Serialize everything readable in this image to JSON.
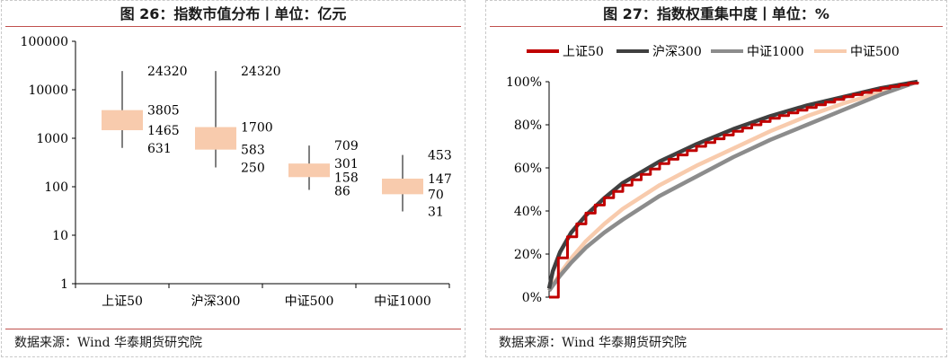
{
  "left": {
    "title": "图 26：指数市值分布丨单位：亿元",
    "source": "数据来源：Wind 华泰期货研究院"
  },
  "right": {
    "title": "图 27：指数权重集中度丨单位：%",
    "source": "数据来源：Wind 华泰期货研究院"
  },
  "colors": {
    "accent_rule": "#c0504d",
    "box_fill": "#f8cbad",
    "sz50": "#c00000",
    "hs300": "#404040",
    "zz1000": "#8c8c8c",
    "zz500": "#f8cbad"
  },
  "chart_data": [
    {
      "type": "box",
      "title": "图 26：指数市值分布丨单位：亿元",
      "yscale": "log",
      "ylim": [
        1,
        100000
      ],
      "y_ticks": [
        "1",
        "10",
        "100",
        "1000",
        "10000",
        "100000"
      ],
      "categories": [
        "上证50",
        "沪深300",
        "中证500",
        "中证1000"
      ],
      "stats": [
        {
          "max": 24320,
          "q3": 3805,
          "median": 1465,
          "q1": 1465,
          "min": 631,
          "labels": [
            "24320",
            "3805",
            "1465",
            "631"
          ]
        },
        {
          "max": 24320,
          "q3": 1700,
          "median": 583,
          "q1": 583,
          "min": 250,
          "labels": [
            "24320",
            "1700",
            "583",
            "250"
          ]
        },
        {
          "max": 709,
          "q3": 301,
          "median": 158,
          "q1": 158,
          "min": 86,
          "labels": [
            "709",
            "301",
            "158",
            "86"
          ]
        },
        {
          "max": 453,
          "q3": 147,
          "median": 70,
          "q1": 70,
          "min": 31,
          "labels": [
            "453",
            "147",
            "70",
            "31"
          ]
        }
      ],
      "grid": false
    },
    {
      "type": "line",
      "title": "图 27：指数权重集中度丨单位：%",
      "ylim": [
        0,
        100
      ],
      "y_ticks": [
        "0%",
        "20%",
        "40%",
        "60%",
        "80%",
        "100%"
      ],
      "x": "cumulative constituent share (0-1)",
      "legend_position": "top",
      "series": [
        {
          "name": "上证50",
          "style": "step",
          "points": [
            [
              0,
              0
            ],
            [
              0.02,
              16
            ],
            [
              0.04,
              25
            ],
            [
              0.06,
              31
            ],
            [
              0.1,
              39
            ],
            [
              0.14,
              45
            ],
            [
              0.2,
              52
            ],
            [
              0.3,
              62
            ],
            [
              0.4,
              70
            ],
            [
              0.5,
              77
            ],
            [
              0.6,
              83
            ],
            [
              0.7,
              88
            ],
            [
              0.8,
              93
            ],
            [
              0.9,
              97
            ],
            [
              1,
              100
            ]
          ]
        },
        {
          "name": "沪深300",
          "points": [
            [
              0,
              4
            ],
            [
              0.01,
              12
            ],
            [
              0.03,
              21
            ],
            [
              0.06,
              30
            ],
            [
              0.1,
              38
            ],
            [
              0.15,
              46
            ],
            [
              0.2,
              53
            ],
            [
              0.3,
              63
            ],
            [
              0.4,
              71
            ],
            [
              0.5,
              78
            ],
            [
              0.6,
              84
            ],
            [
              0.7,
              89
            ],
            [
              0.8,
              93
            ],
            [
              0.9,
              97
            ],
            [
              1,
              100
            ]
          ]
        },
        {
          "name": "中证1000",
          "points": [
            [
              0,
              3
            ],
            [
              0.03,
              10
            ],
            [
              0.06,
              16
            ],
            [
              0.1,
              23
            ],
            [
              0.15,
              30
            ],
            [
              0.2,
              36
            ],
            [
              0.3,
              47
            ],
            [
              0.4,
              56
            ],
            [
              0.5,
              65
            ],
            [
              0.6,
              73
            ],
            [
              0.7,
              80
            ],
            [
              0.8,
              87
            ],
            [
              0.9,
              94
            ],
            [
              1,
              100
            ]
          ]
        },
        {
          "name": "中证500",
          "points": [
            [
              0,
              3
            ],
            [
              0.03,
              11
            ],
            [
              0.06,
              18
            ],
            [
              0.1,
              26
            ],
            [
              0.15,
              34
            ],
            [
              0.2,
              41
            ],
            [
              0.3,
              52
            ],
            [
              0.4,
              61
            ],
            [
              0.5,
              69
            ],
            [
              0.6,
              77
            ],
            [
              0.7,
              84
            ],
            [
              0.8,
              90
            ],
            [
              0.9,
              95
            ],
            [
              1,
              100
            ]
          ]
        }
      ],
      "grid": false
    }
  ]
}
